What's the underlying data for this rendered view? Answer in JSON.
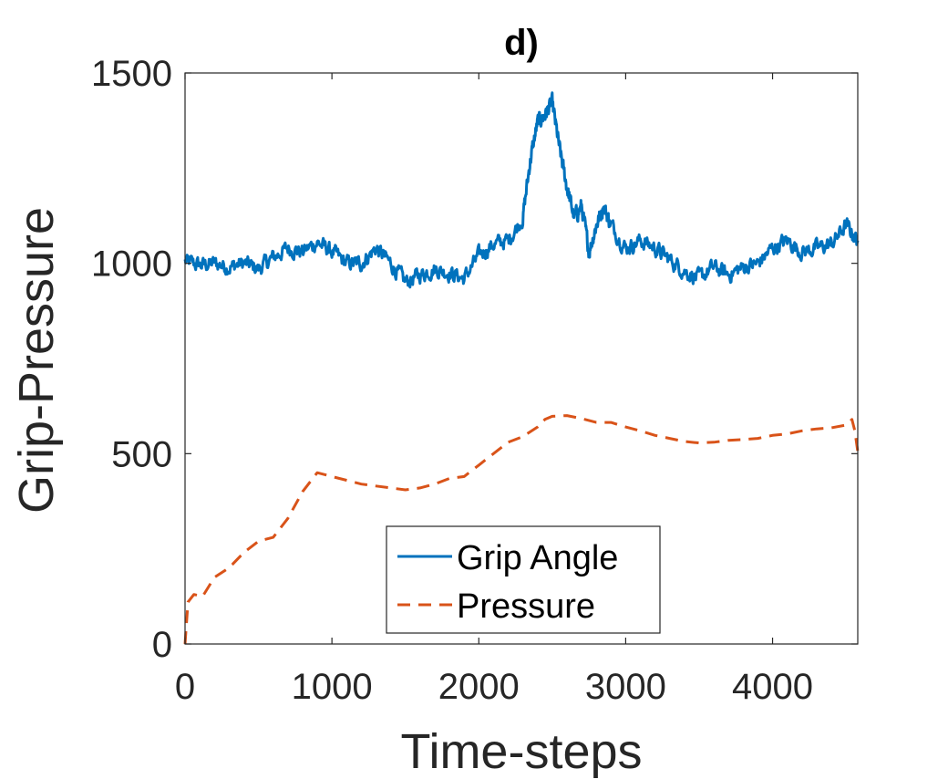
{
  "chart_data": {
    "type": "line",
    "title": "d)",
    "xlabel": "Time-steps",
    "ylabel": "Grip-Pressure",
    "xlim": [
      0,
      4580
    ],
    "ylim": [
      0,
      1500
    ],
    "xticks": [
      0,
      1000,
      2000,
      3000,
      4000
    ],
    "yticks": [
      0,
      500,
      1000,
      1500
    ],
    "xtick_labels": [
      "0",
      "1000",
      "2000",
      "3000",
      "4000"
    ],
    "ytick_labels": [
      "0",
      "500",
      "1000",
      "1500"
    ],
    "legend_position": "bottom-center",
    "series": [
      {
        "name": "Grip Angle",
        "style": "solid",
        "color": "#0072BD",
        "noise": 14,
        "x": [
          0,
          100,
          200,
          300,
          400,
          500,
          600,
          700,
          800,
          900,
          1000,
          1100,
          1200,
          1300,
          1400,
          1500,
          1600,
          1700,
          1800,
          1900,
          2000,
          2100,
          2200,
          2300,
          2350,
          2400,
          2450,
          2500,
          2550,
          2600,
          2650,
          2700,
          2750,
          2800,
          2850,
          2900,
          3000,
          3100,
          3200,
          3300,
          3400,
          3500,
          3600,
          3700,
          3800,
          3900,
          4000,
          4100,
          4200,
          4300,
          4400,
          4500,
          4580
        ],
        "y": [
          1005,
          995,
          1000,
          990,
          1000,
          985,
          1015,
          1040,
          1030,
          1055,
          1030,
          1000,
          1000,
          1040,
          1000,
          950,
          970,
          985,
          975,
          960,
          1020,
          1050,
          1060,
          1120,
          1270,
          1370,
          1390,
          1420,
          1300,
          1200,
          1120,
          1150,
          1030,
          1100,
          1150,
          1100,
          1040,
          1060,
          1040,
          1010,
          980,
          960,
          990,
          970,
          990,
          1000,
          1040,
          1060,
          1030,
          1040,
          1050,
          1100,
          1060
        ]
      },
      {
        "name": "Pressure",
        "style": "dashed",
        "color": "#D95319",
        "noise": 0,
        "x": [
          0,
          20,
          60,
          120,
          200,
          300,
          400,
          500,
          600,
          700,
          800,
          900,
          1000,
          1100,
          1200,
          1300,
          1400,
          1500,
          1600,
          1700,
          1800,
          1900,
          2000,
          2100,
          2200,
          2300,
          2400,
          2450,
          2500,
          2600,
          2700,
          2800,
          2900,
          3000,
          3100,
          3200,
          3300,
          3400,
          3500,
          3600,
          3700,
          3800,
          3900,
          4000,
          4100,
          4200,
          4300,
          4400,
          4500,
          4540,
          4560,
          4580
        ],
        "y": [
          0,
          110,
          130,
          125,
          175,
          200,
          240,
          270,
          280,
          330,
          400,
          450,
          440,
          430,
          420,
          415,
          410,
          405,
          410,
          420,
          435,
          440,
          470,
          500,
          530,
          545,
          570,
          590,
          598,
          600,
          592,
          582,
          582,
          570,
          560,
          548,
          540,
          532,
          528,
          530,
          535,
          537,
          540,
          548,
          552,
          560,
          565,
          568,
          575,
          590,
          560,
          505
        ]
      }
    ]
  }
}
